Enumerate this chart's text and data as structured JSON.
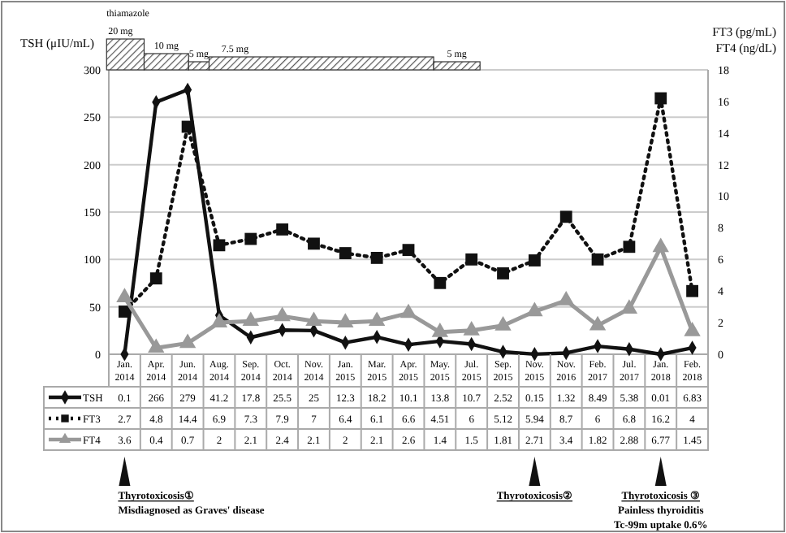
{
  "chart_data": {
    "type": "line",
    "categories": [
      "Jan. 2014",
      "Apr. 2014",
      "Jun. 2014",
      "Aug. 2014",
      "Sep. 2014",
      "Oct. 2014",
      "Nov. 2014",
      "Jan. 2015",
      "Mar. 2015",
      "Apr. 2015",
      "May. 2015",
      "Jul. 2015",
      "Sep. 2015",
      "Nov. 2015",
      "Nov. 2016",
      "Feb. 2017",
      "Jul. 2017",
      "Jan. 2018",
      "Feb. 2018"
    ],
    "series": [
      {
        "name": "TSH",
        "color": "#111111",
        "marker": "diamond",
        "line_style": "solid",
        "values": [
          0.1,
          266,
          279,
          41.2,
          17.8,
          25.5,
          25,
          12.3,
          18.2,
          10.1,
          13.8,
          10.7,
          2.52,
          0.15,
          1.32,
          8.49,
          5.38,
          0.01,
          6.83
        ]
      },
      {
        "name": "FT3",
        "color": "#111111",
        "marker": "square",
        "line_style": "dotted",
        "axis": "y2",
        "values": [
          2.7,
          4.8,
          14.4,
          6.9,
          7.3,
          7.9,
          7,
          6.4,
          6.1,
          6.6,
          4.51,
          6,
          5.12,
          5.94,
          8.7,
          6,
          6.8,
          16.2,
          4
        ]
      },
      {
        "name": "FT4",
        "color": "#999999",
        "marker": "triangle",
        "line_style": "solid",
        "axis": "y2",
        "values": [
          3.6,
          0.4,
          0.7,
          2,
          2.1,
          2.4,
          2.1,
          2,
          2.1,
          2.6,
          1.4,
          1.5,
          1.81,
          2.71,
          3.4,
          1.82,
          2.88,
          6.77,
          1.45
        ]
      }
    ],
    "ylabel": "TSH (μIU/mL)",
    "y2label": "FT3 (pg/mL)\nFT4 (ng/dL)",
    "ylim": [
      0,
      300
    ],
    "yticks": [
      0,
      50,
      100,
      150,
      200,
      250,
      300
    ],
    "y2lim": [
      0,
      18
    ],
    "y2ticks": [
      0,
      2,
      4,
      6,
      8,
      10,
      12,
      14,
      16,
      18
    ],
    "grid": "y",
    "legend": "bottom",
    "data_labels": true,
    "annotations": [
      "thiamazole",
      "20 mg",
      "10 mg",
      "5 mg",
      "7.5 mg",
      "5 mg",
      "Thyrotoxicosis①",
      "Misdiagnosed as Graves' disease",
      "Thyrotoxicosis②",
      "Thyrotoxicosis ③",
      "Painless thyroiditis",
      "Tc-99m uptake 0.6%"
    ]
  }
}
